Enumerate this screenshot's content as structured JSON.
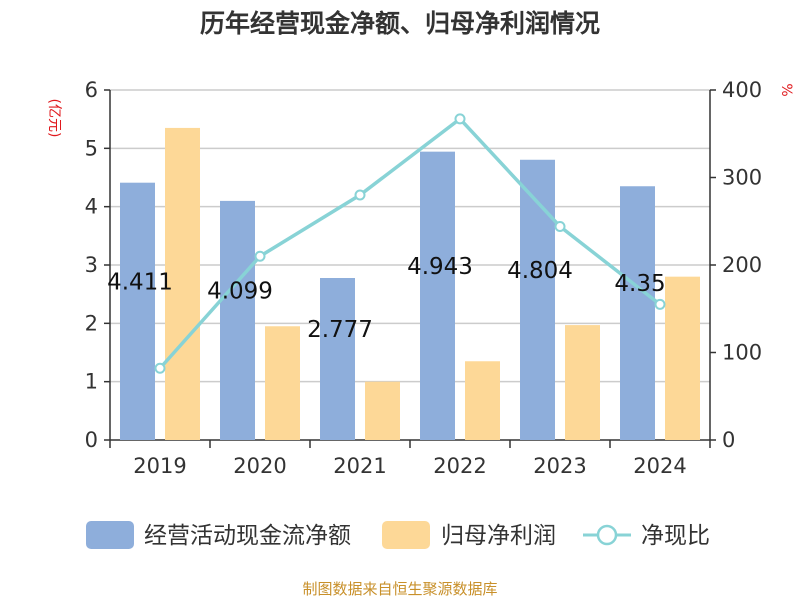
{
  "chart_data": {
    "type": "bar",
    "title": "历年经营现金净额、归母净利润情况",
    "categories": [
      "2019",
      "2020",
      "2021",
      "2022",
      "2023",
      "2024"
    ],
    "series": [
      {
        "name": "经营活动现金流净额",
        "axis": "left",
        "kind": "bar",
        "color": "#8eaedb",
        "values": [
          4.411,
          4.099,
          2.777,
          4.943,
          4.804,
          4.35
        ]
      },
      {
        "name": "归母净利润",
        "axis": "left",
        "kind": "bar",
        "color": "#fdd897",
        "values": [
          5.35,
          1.95,
          1.0,
          1.35,
          1.97,
          2.8
        ]
      },
      {
        "name": "净现比",
        "axis": "right",
        "kind": "line",
        "color": "#88d3d6",
        "values": [
          82,
          210,
          280,
          367,
          244,
          155
        ]
      }
    ],
    "data_labels": [
      "4.411",
      "4.099",
      "2.777",
      "4.943",
      "4.804",
      "4.35"
    ],
    "y_left": {
      "label": "(亿元)",
      "ylim": [
        0,
        6
      ],
      "ticks": [
        "0",
        "1",
        "2",
        "3",
        "4",
        "5",
        "6"
      ]
    },
    "y_right": {
      "label": "%",
      "ylim": [
        0,
        400
      ],
      "ticks": [
        "0",
        "100",
        "200",
        "300",
        "400"
      ]
    },
    "legend_position": "bottom",
    "grid": true,
    "source": "制图数据来自恒生聚源数据库"
  }
}
